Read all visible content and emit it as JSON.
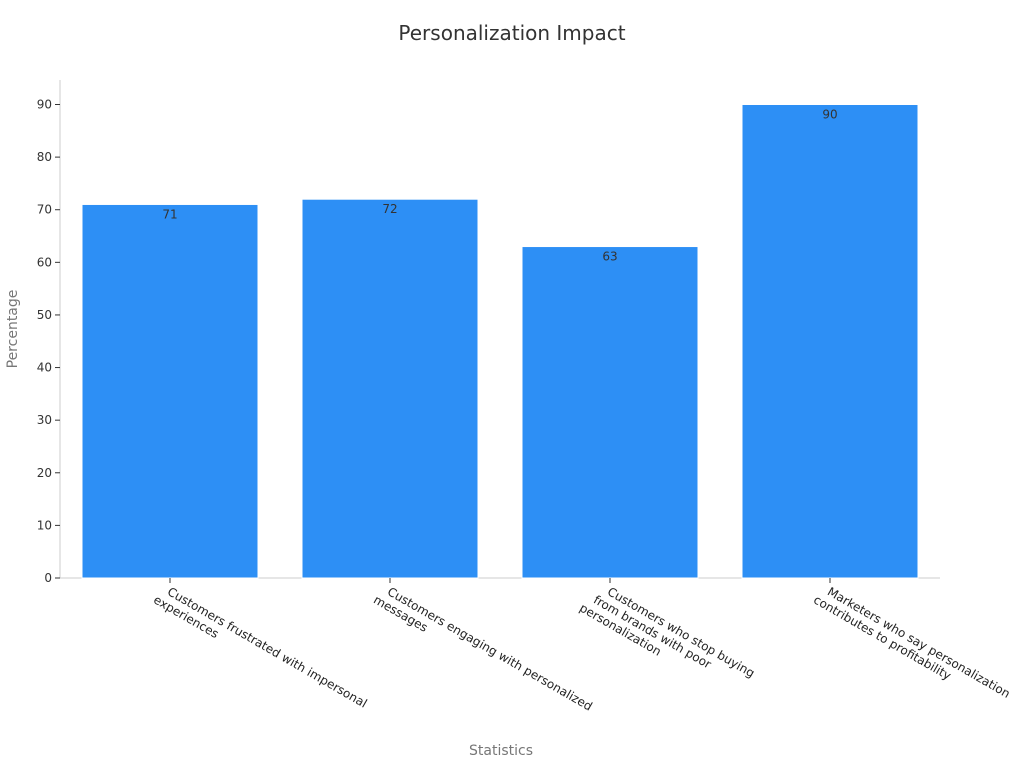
{
  "chart_data": {
    "type": "bar",
    "title": "Personalization Impact",
    "xlabel": "Statistics",
    "ylabel": "Percentage",
    "categories": [
      [
        "Customers frustrated with impersonal",
        "experiences"
      ],
      [
        "Customers engaging with personalized",
        "messages"
      ],
      [
        "Customers who stop buying",
        "from brands with poor",
        "personalization"
      ],
      [
        "Marketers who say personalization",
        "contributes to profitability"
      ]
    ],
    "values": [
      71,
      72,
      63,
      90
    ],
    "ylim": [
      0,
      95
    ],
    "yticks": [
      0,
      10,
      20,
      30,
      40,
      50,
      60,
      70,
      80,
      90
    ],
    "bar_color": "#2d8ff5",
    "grid": false,
    "legend": "none"
  }
}
